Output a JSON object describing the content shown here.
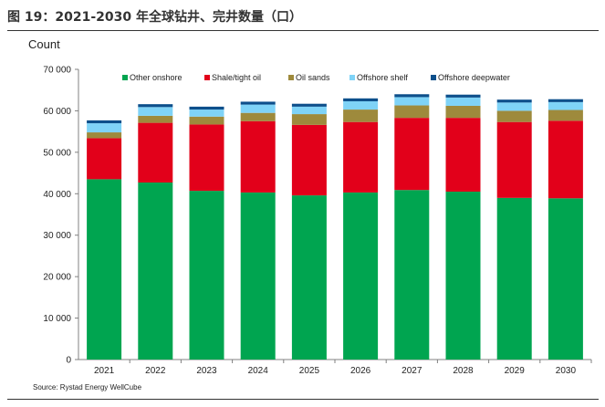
{
  "figure": {
    "title": "图 19：2021-2030 年全球钻井、完井数量（口）",
    "source": "Source: Rystad Energy WellCube"
  },
  "chart_data": {
    "type": "bar",
    "stacked": true,
    "ylabel": "Count",
    "ylim": [
      0,
      70000
    ],
    "yticks": [
      "0",
      "10 000",
      "20 000",
      "30 000",
      "40 000",
      "50 000",
      "60 000",
      "70 000"
    ],
    "yticks_values": [
      0,
      10000,
      20000,
      30000,
      40000,
      50000,
      60000,
      70000
    ],
    "grid": false,
    "legend_position": "top",
    "categories": [
      "2021",
      "2022",
      "2023",
      "2024",
      "2025",
      "2026",
      "2027",
      "2028",
      "2029",
      "2030"
    ],
    "series": [
      {
        "name": "Other onshore",
        "color": "#00a550",
        "values": [
          43500,
          42700,
          40700,
          40300,
          39600,
          40300,
          40900,
          40500,
          39000,
          38900
        ]
      },
      {
        "name": "Shale/tight oil",
        "color": "#e2001a",
        "values": [
          9900,
          14400,
          16000,
          17200,
          17000,
          17000,
          17400,
          17800,
          18300,
          18700
        ]
      },
      {
        "name": "Oil sands",
        "color": "#9e8a3c",
        "values": [
          1400,
          1700,
          1900,
          2000,
          2600,
          3000,
          3000,
          2900,
          2700,
          2600
        ]
      },
      {
        "name": "Offshore shelf",
        "color": "#7fd3f7",
        "values": [
          2200,
          2100,
          1700,
          2000,
          1800,
          2000,
          2000,
          2000,
          2000,
          1900
        ]
      },
      {
        "name": "Offshore deepwater",
        "color": "#0d4f8b",
        "values": [
          700,
          700,
          700,
          700,
          700,
          700,
          700,
          700,
          700,
          700
        ]
      }
    ]
  }
}
